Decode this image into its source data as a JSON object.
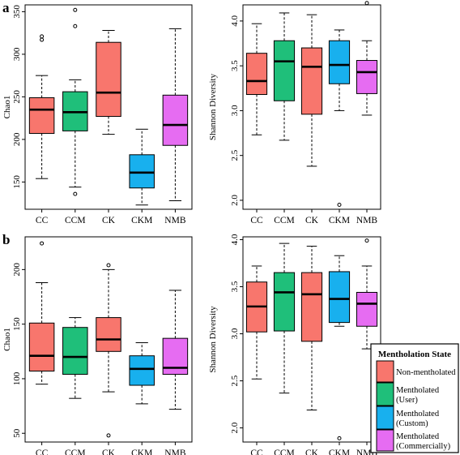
{
  "figure": {
    "panel_labels": [
      "a",
      "b"
    ]
  },
  "legend": {
    "title": "Mentholation State",
    "entries": [
      {
        "lines": [
          "Non-mentholated"
        ],
        "color": "#F8766D"
      },
      {
        "lines": [
          "Mentholated",
          "(User)"
        ],
        "color": "#1FBF7A"
      },
      {
        "lines": [
          "Mentholated",
          "(Custom)"
        ],
        "color": "#18B0EE"
      },
      {
        "lines": [
          "Mentholated",
          "(Commercially)"
        ],
        "color": "#E66CF2"
      }
    ]
  },
  "chart_data": [
    {
      "type": "box",
      "panel": "a",
      "ylabel": "Chao1",
      "ylim": [
        118,
        358
      ],
      "yticks": [
        150,
        200,
        250,
        300,
        350
      ],
      "categories": [
        "CC",
        "CCM",
        "CK",
        "CKM",
        "NMB"
      ],
      "colors": [
        "#F8766D",
        "#1FBF7A",
        "#F8766D",
        "#18B0EE",
        "#E66CF2"
      ],
      "boxes": [
        {
          "min": 154,
          "q1": 207,
          "median": 235,
          "q3": 249,
          "max": 275,
          "outliers": [
            317,
            321
          ]
        },
        {
          "min": 144,
          "q1": 210,
          "median": 232,
          "q3": 256,
          "max": 270,
          "outliers": [
            136,
            333,
            352
          ]
        },
        {
          "min": 206,
          "q1": 227,
          "median": 255,
          "q3": 314,
          "max": 328,
          "outliers": []
        },
        {
          "min": 123,
          "q1": 143,
          "median": 161,
          "q3": 182,
          "max": 212,
          "outliers": []
        },
        {
          "min": 128,
          "q1": 193,
          "median": 217,
          "q3": 252,
          "max": 330,
          "outliers": []
        }
      ]
    },
    {
      "type": "box",
      "panel": "a",
      "ylabel": "Shannon Diversity",
      "ylim": [
        1.9,
        4.18
      ],
      "yticks": [
        2.0,
        2.5,
        3.0,
        3.5,
        4.0
      ],
      "categories": [
        "CC",
        "CCM",
        "CK",
        "CKM",
        "NMB"
      ],
      "colors": [
        "#F8766D",
        "#1FBF7A",
        "#F8766D",
        "#18B0EE",
        "#E66CF2"
      ],
      "boxes": [
        {
          "min": 2.73,
          "q1": 3.18,
          "median": 3.33,
          "q3": 3.64,
          "max": 3.97,
          "outliers": []
        },
        {
          "min": 2.67,
          "q1": 3.11,
          "median": 3.55,
          "q3": 3.78,
          "max": 4.09,
          "outliers": []
        },
        {
          "min": 2.38,
          "q1": 2.96,
          "median": 3.49,
          "q3": 3.7,
          "max": 4.07,
          "outliers": []
        },
        {
          "min": 3.0,
          "q1": 3.3,
          "median": 3.51,
          "q3": 3.78,
          "max": 3.9,
          "outliers": [
            1.95
          ]
        },
        {
          "min": 2.95,
          "q1": 3.19,
          "median": 3.43,
          "q3": 3.56,
          "max": 3.78,
          "outliers": [
            4.2
          ]
        }
      ]
    },
    {
      "type": "box",
      "panel": "b",
      "ylabel": "Chao1",
      "ylim": [
        42,
        230
      ],
      "yticks": [
        50,
        100,
        150,
        200
      ],
      "categories": [
        "CC",
        "CCM",
        "CK",
        "CKM",
        "NMB"
      ],
      "colors": [
        "#F8766D",
        "#1FBF7A",
        "#F8766D",
        "#18B0EE",
        "#E66CF2"
      ],
      "boxes": [
        {
          "min": 95,
          "q1": 107,
          "median": 121,
          "q3": 151,
          "max": 188,
          "outliers": [
            224
          ]
        },
        {
          "min": 82,
          "q1": 104,
          "median": 120,
          "q3": 147,
          "max": 156,
          "outliers": []
        },
        {
          "min": 88,
          "q1": 125,
          "median": 136,
          "q3": 156,
          "max": 200,
          "outliers": [
            48,
            204
          ]
        },
        {
          "min": 77,
          "q1": 94,
          "median": 109,
          "q3": 121,
          "max": 133,
          "outliers": []
        },
        {
          "min": 72,
          "q1": 104,
          "median": 110,
          "q3": 137,
          "max": 181,
          "outliers": []
        }
      ]
    },
    {
      "type": "box",
      "panel": "b",
      "ylabel": "Shannon Diversity",
      "ylim": [
        1.85,
        4.03
      ],
      "yticks": [
        2.0,
        2.5,
        3.0,
        3.5,
        4.0
      ],
      "categories": [
        "CC",
        "CCM",
        "CK",
        "CKM",
        "NMB"
      ],
      "colors": [
        "#F8766D",
        "#1FBF7A",
        "#F8766D",
        "#18B0EE",
        "#E66CF2"
      ],
      "boxes": [
        {
          "min": 2.52,
          "q1": 3.02,
          "median": 3.29,
          "q3": 3.55,
          "max": 3.72,
          "outliers": []
        },
        {
          "min": 2.37,
          "q1": 3.03,
          "median": 3.44,
          "q3": 3.65,
          "max": 3.96,
          "outliers": []
        },
        {
          "min": 2.19,
          "q1": 2.92,
          "median": 3.42,
          "q3": 3.65,
          "max": 3.93,
          "outliers": []
        },
        {
          "min": 3.08,
          "q1": 3.12,
          "median": 3.37,
          "q3": 3.66,
          "max": 3.83,
          "outliers": [
            1.89
          ]
        },
        {
          "min": 2.84,
          "q1": 3.08,
          "median": 3.32,
          "q3": 3.44,
          "max": 3.72,
          "outliers": [
            3.99
          ]
        }
      ]
    }
  ]
}
